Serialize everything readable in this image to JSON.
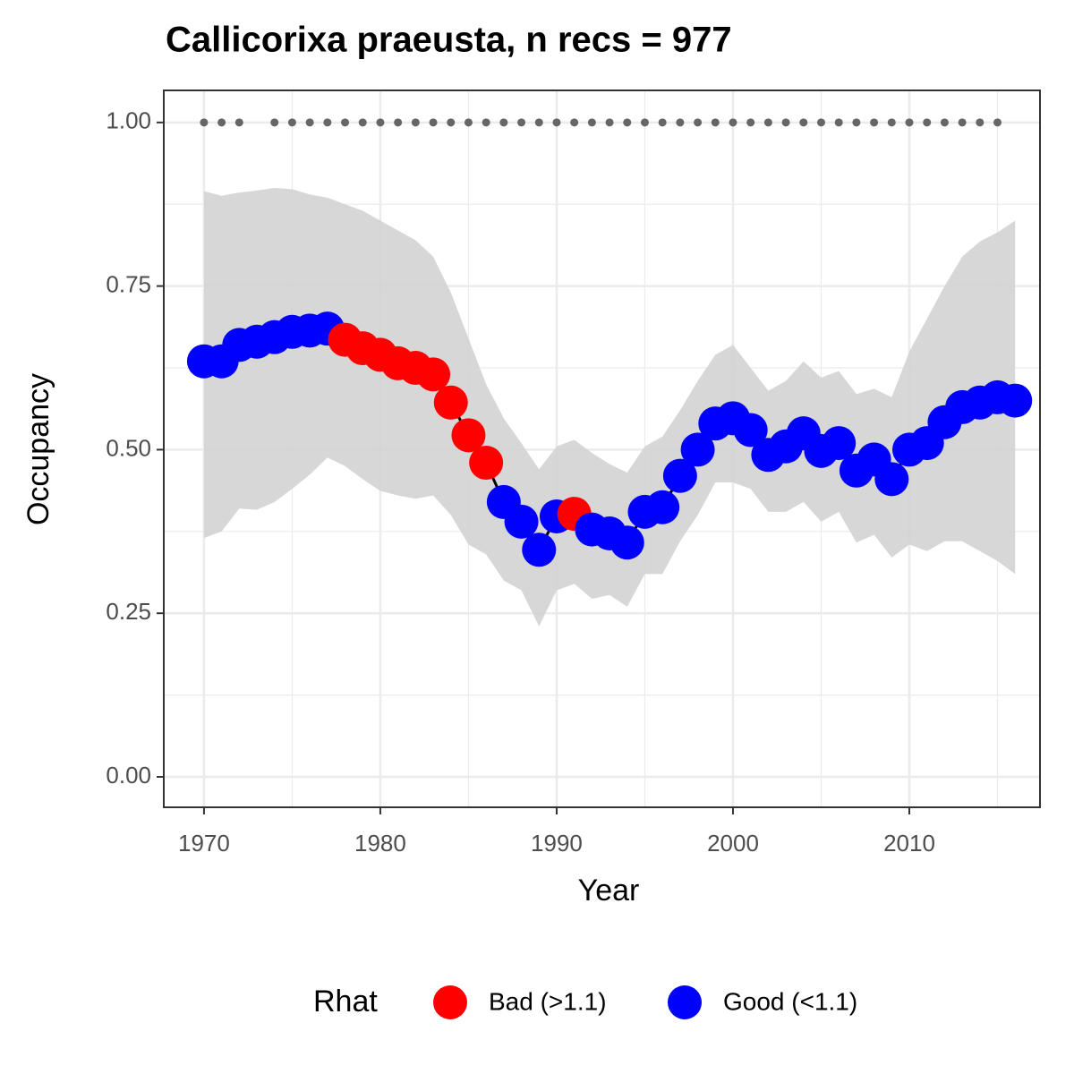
{
  "chart_data": {
    "type": "line",
    "title": "Callicorixa praeusta, n recs = 977",
    "x_label": "Year",
    "y_label": "Occupancy",
    "x": [
      1970,
      1971,
      1972,
      1973,
      1974,
      1975,
      1976,
      1977,
      1978,
      1979,
      1980,
      1981,
      1982,
      1983,
      1984,
      1985,
      1986,
      1987,
      1988,
      1989,
      1990,
      1991,
      1992,
      1993,
      1994,
      1995,
      1996,
      1997,
      1998,
      1999,
      2000,
      2001,
      2002,
      2003,
      2004,
      2005,
      2006,
      2007,
      2008,
      2009,
      2010,
      2011,
      2012,
      2013,
      2014,
      2015,
      2016
    ],
    "values": [
      0.635,
      0.635,
      0.66,
      0.665,
      0.672,
      0.68,
      0.682,
      0.685,
      0.668,
      0.655,
      0.645,
      0.632,
      0.625,
      0.615,
      0.572,
      0.522,
      0.48,
      0.42,
      0.39,
      0.347,
      0.398,
      0.402,
      0.378,
      0.372,
      0.358,
      0.405,
      0.412,
      0.46,
      0.5,
      0.54,
      0.548,
      0.53,
      0.492,
      0.505,
      0.525,
      0.498,
      0.51,
      0.468,
      0.485,
      0.455,
      0.5,
      0.51,
      0.542,
      0.565,
      0.572,
      0.58,
      0.575
    ],
    "upper": [
      0.895,
      0.888,
      0.893,
      0.896,
      0.9,
      0.898,
      0.89,
      0.885,
      0.875,
      0.865,
      0.85,
      0.835,
      0.82,
      0.795,
      0.74,
      0.67,
      0.6,
      0.548,
      0.51,
      0.47,
      0.505,
      0.515,
      0.495,
      0.478,
      0.465,
      0.505,
      0.52,
      0.56,
      0.605,
      0.645,
      0.66,
      0.625,
      0.59,
      0.605,
      0.635,
      0.61,
      0.62,
      0.585,
      0.593,
      0.58,
      0.65,
      0.7,
      0.75,
      0.795,
      0.818,
      0.832,
      0.85
    ],
    "lower": [
      0.365,
      0.375,
      0.41,
      0.408,
      0.42,
      0.44,
      0.462,
      0.488,
      0.475,
      0.455,
      0.437,
      0.43,
      0.425,
      0.43,
      0.4,
      0.355,
      0.34,
      0.3,
      0.285,
      0.23,
      0.285,
      0.295,
      0.272,
      0.278,
      0.26,
      0.31,
      0.31,
      0.36,
      0.4,
      0.45,
      0.45,
      0.44,
      0.405,
      0.405,
      0.42,
      0.39,
      0.405,
      0.358,
      0.37,
      0.335,
      0.355,
      0.345,
      0.36,
      0.36,
      0.345,
      0.33,
      0.31
    ],
    "rhat": [
      "Good (<1.1)",
      "Good (<1.1)",
      "Good (<1.1)",
      "Good (<1.1)",
      "Good (<1.1)",
      "Good (<1.1)",
      "Good (<1.1)",
      "Good (<1.1)",
      "Bad (>1.1)",
      "Bad (>1.1)",
      "Bad (>1.1)",
      "Bad (>1.1)",
      "Bad (>1.1)",
      "Bad (>1.1)",
      "Bad (>1.1)",
      "Bad (>1.1)",
      "Bad (>1.1)",
      "Good (<1.1)",
      "Good (<1.1)",
      "Good (<1.1)",
      "Good (<1.1)",
      "Bad (>1.1)",
      "Good (<1.1)",
      "Good (<1.1)",
      "Good (<1.1)",
      "Good (<1.1)",
      "Good (<1.1)",
      "Good (<1.1)",
      "Good (<1.1)",
      "Good (<1.1)",
      "Good (<1.1)",
      "Good (<1.1)",
      "Good (<1.1)",
      "Good (<1.1)",
      "Good (<1.1)",
      "Good (<1.1)",
      "Good (<1.1)",
      "Good (<1.1)",
      "Good (<1.1)",
      "Good (<1.1)",
      "Good (<1.1)",
      "Good (<1.1)",
      "Good (<1.1)",
      "Good (<1.1)",
      "Good (<1.1)",
      "Good (<1.1)",
      "Good (<1.1)"
    ],
    "legend_title": "Rhat",
    "legend": [
      {
        "name": "Bad (>1.1)",
        "color": "#ff0000"
      },
      {
        "name": "Good (<1.1)",
        "color": "#0000ff"
      }
    ],
    "line_color": "#000000",
    "ribbon_color": "#d3d3d3",
    "records": {
      "x": [
        1970,
        1971,
        1972,
        1974,
        1975,
        1976,
        1977,
        1978,
        1979,
        1980,
        1981,
        1982,
        1983,
        1984,
        1985,
        1986,
        1987,
        1988,
        1989,
        1990,
        1991,
        1992,
        1993,
        1994,
        1995,
        1996,
        1997,
        1998,
        1999,
        2000,
        2001,
        2002,
        2003,
        2004,
        2005,
        2006,
        2007,
        2008,
        2009,
        2010,
        2011,
        2012,
        2013,
        2014,
        2015
      ],
      "value": 1,
      "color": "#666666"
    },
    "xlim": [
      1967.72,
      2017.41
    ],
    "ylim": [
      -0.0465,
      1.049
    ],
    "xticks": [
      1970,
      1980,
      1990,
      2000,
      2010
    ],
    "minor_xticks": [
      1975,
      1985,
      1995,
      2005,
      2015
    ],
    "yticks": [
      {
        "value": 0,
        "label": "0.00"
      },
      {
        "value": 0.25,
        "label": "0.25"
      },
      {
        "value": 0.5,
        "label": "0.50"
      },
      {
        "value": 0.75,
        "label": "0.75"
      },
      {
        "value": 1,
        "label": "1.00"
      }
    ],
    "minor_yticks": [
      0.125,
      0.375,
      0.625,
      0.875
    ],
    "grid": true,
    "legend_position": "bottom"
  }
}
